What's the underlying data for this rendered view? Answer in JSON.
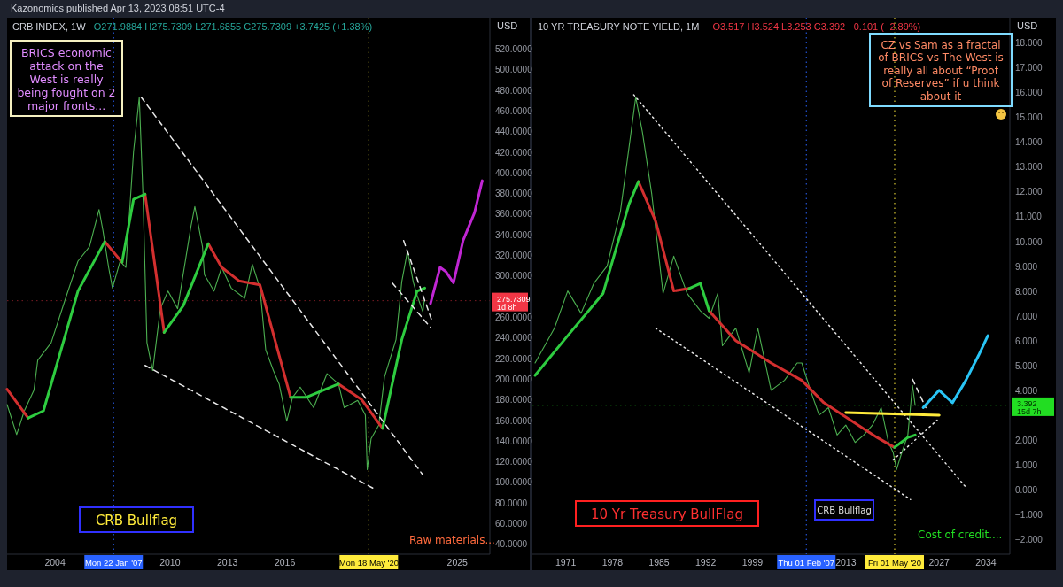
{
  "chart_data": [
    {
      "type": "line",
      "title": "CRB INDEX, 1W",
      "subtitle": "O271.9884 H275.7309 L271.6855 C275.7309 +3.7425 (+1.38%)",
      "ylabel": "USD",
      "xlim": [
        2001.5,
        2026.7
      ],
      "xticks": [
        2004,
        2010,
        2013,
        2016,
        2025
      ],
      "ylim": [
        30,
        550
      ],
      "yticks": [
        {
          "value": 40,
          "label": "40.0000"
        },
        {
          "value": 60,
          "label": "60.0000"
        },
        {
          "value": 80,
          "label": "80.0000"
        },
        {
          "value": 100,
          "label": "100.0000"
        },
        {
          "value": 120,
          "label": "120.0000"
        },
        {
          "value": 140,
          "label": "140.0000"
        },
        {
          "value": 160,
          "label": "160.0000"
        },
        {
          "value": 180,
          "label": "180.0000"
        },
        {
          "value": 200,
          "label": "200.0000"
        },
        {
          "value": 220,
          "label": "220.0000"
        },
        {
          "value": 240,
          "label": "240.0000"
        },
        {
          "value": 260,
          "label": "260.0000"
        },
        {
          "value": 300,
          "label": "300.0000"
        },
        {
          "value": 320,
          "label": "320.0000"
        },
        {
          "value": 340,
          "label": "340.0000"
        },
        {
          "value": 360,
          "label": "360.0000"
        },
        {
          "value": 380,
          "label": "380.0000"
        },
        {
          "value": 400,
          "label": "400.0000"
        },
        {
          "value": 420,
          "label": "420.0000"
        },
        {
          "value": 440,
          "label": "440.0000"
        },
        {
          "value": 460,
          "label": "460.0000"
        },
        {
          "value": 480,
          "label": "480.0000"
        },
        {
          "value": 500,
          "label": "500.0000"
        },
        {
          "value": 520,
          "label": "520.0000"
        }
      ],
      "series": [
        {
          "color": "#4caf50",
          "x": [
            2001.5,
            2002.0,
            2002.4,
            2002.9,
            2003.1,
            2003.8,
            2004.5,
            2005.2,
            2005.8,
            2006.3,
            2006.5,
            2006.8,
            2007.0,
            2007.4,
            2007.7,
            2008.1,
            2008.4,
            2008.6,
            2008.8,
            2009.1,
            2009.5,
            2009.9,
            2010.4,
            2011.1,
            2011.3,
            2011.7,
            2011.8,
            2012.3,
            2012.7,
            2013.2,
            2013.9,
            2014.3,
            2014.7,
            2015.0,
            2015.4,
            2015.7,
            2016.1,
            2016.4,
            2016.8,
            2017.5,
            2018.2,
            2018.8,
            2019.1,
            2019.8,
            2020.2,
            2020.3,
            2020.5,
            2020.9,
            2021.2,
            2021.8,
            2022.1,
            2022.4,
            2022.7,
            2022.9,
            2023.2,
            2023.28
          ],
          "values": [
            175,
            146,
            169,
            189,
            218,
            235,
            275,
            314,
            328,
            364,
            344,
            308,
            288,
            314,
            308,
            420,
            473,
            374,
            235,
            208,
            268,
            285,
            268,
            348,
            367,
            328,
            301,
            285,
            308,
            288,
            278,
            311,
            288,
            228,
            208,
            195,
            159,
            182,
            192,
            172,
            205,
            195,
            172,
            179,
            165,
            112,
            142,
            155,
            202,
            238,
            294,
            324,
            294,
            281,
            265,
            276
          ]
        },
        {
          "color": "#d32f2f",
          "line_style": "solid",
          "x": [
            2001.5,
            2002.6,
            2002.7,
            2006.6,
            2007.5,
            2007.6,
            2008.7,
            2009.7,
            2009.8,
            2012.0,
            2012.7,
            2013.6,
            2014.7,
            2016.3,
            2016.4,
            2018.8,
            2020.0,
            2021.1
          ],
          "values": [
            190,
            162,
            null,
            333,
            313,
            null,
            379,
            245,
            null,
            331,
            308,
            295,
            291,
            182,
            null,
            195,
            180,
            152
          ]
        },
        {
          "color": "#2ecc40",
          "line_style": "solid",
          "x": [
            2002.6,
            2003.4,
            2005.2,
            2006.6,
            2006.7,
            2007.5,
            2008.1,
            2008.7,
            2008.8,
            2009.7,
            2010.7,
            2012.0,
            2012.1,
            2016.3,
            2017.1,
            2018.8,
            2018.9,
            2021.1,
            2022.1,
            2022.9,
            2023.3
          ],
          "values": [
            162,
            169,
            285,
            333,
            null,
            313,
            374,
            379,
            null,
            245,
            271,
            331,
            null,
            182,
            182,
            195,
            null,
            152,
            238,
            285,
            288
          ]
        },
        {
          "color": "#e8e8e8",
          "line_style": "dashed",
          "x": [
            2008.5,
            2023.2
          ],
          "values": [
            473,
            107
          ]
        },
        {
          "color": "#e8e8e8",
          "line_style": "dashed",
          "x": [
            2008.7,
            2020.6
          ],
          "values": [
            213,
            94
          ]
        },
        {
          "color": "#e8e8e8",
          "line_style": "dashed",
          "x": [
            2022.2,
            2023.7
          ],
          "values": [
            334,
            255
          ]
        },
        {
          "color": "#e8e8e8",
          "line_style": "dashed",
          "x": [
            2021.6,
            2023.6
          ],
          "values": [
            293,
            250
          ]
        },
        {
          "color": "#c026d3",
          "line_style": "solid",
          "x": [
            2023.6,
            2024.1,
            2024.4,
            2024.8,
            2025.3,
            2025.9,
            2026.3
          ],
          "values": [
            273,
            308,
            304,
            293,
            334,
            361,
            392
          ]
        }
      ],
      "ref_lines": [
        {
          "axis": "x",
          "value": 2007.06,
          "label": "Mon 22 Jan '07",
          "color": "#2962ff",
          "line_style": "dotted"
        },
        {
          "axis": "x",
          "value": 2020.38,
          "label": "Mon 18 May '20",
          "color": "#ffeb3b",
          "line_style": "dotted"
        },
        {
          "axis": "y",
          "value": 275.7309,
          "label": "275.7309",
          "color": "#f23645",
          "line_style": "dotted"
        }
      ],
      "annotations": [
        "Kazonomics published Apr 13, 2023 08:51 UTC-4",
        "BRICS economic attack on the West is really being fought on 2 major fronts...",
        "CRB Bullflag",
        "Raw materials...",
        "1d 8h"
      ]
    },
    {
      "type": "line",
      "title": "10 YR TREASURY NOTE YIELD, 1M",
      "subtitle": "O3.517 H3.524 L3.253 C3.392 −0.101 (−2.89%)",
      "ylabel": "USD",
      "xlim": [
        1966,
        2037.6
      ],
      "xticks": [
        1971,
        1978,
        1985,
        1992,
        1999,
        2013,
        2027,
        2034
      ],
      "ylim": [
        -2.6,
        19
      ],
      "yticks": [
        {
          "value": -2,
          "label": "−2.000"
        },
        {
          "value": -1,
          "label": "−1.000"
        },
        {
          "value": 0,
          "label": "0.000"
        },
        {
          "value": 1,
          "label": "1.000"
        },
        {
          "value": 2,
          "label": "2.000"
        },
        {
          "value": 4,
          "label": "4.000"
        },
        {
          "value": 5,
          "label": "5.000"
        },
        {
          "value": 6,
          "label": "6.000"
        },
        {
          "value": 7,
          "label": "7.000"
        },
        {
          "value": 8,
          "label": "8.000"
        },
        {
          "value": 9,
          "label": "9.000"
        },
        {
          "value": 10,
          "label": "10.000"
        },
        {
          "value": 11,
          "label": "11.000"
        },
        {
          "value": 12,
          "label": "12.000"
        },
        {
          "value": 13,
          "label": "13.000"
        },
        {
          "value": 14,
          "label": "14.000"
        },
        {
          "value": 15,
          "label": "15.000"
        },
        {
          "value": 16,
          "label": "16.000"
        },
        {
          "value": 17,
          "label": "17.000"
        },
        {
          "value": 18,
          "label": "18.000"
        }
      ],
      "series": [
        {
          "color": "#4caf50",
          "x": [
            1966.4,
            1969.3,
            1971.3,
            1973.3,
            1975.2,
            1977.2,
            1979.2,
            1980.8,
            1981.5,
            1982.5,
            1983.9,
            1985.6,
            1987.2,
            1989.2,
            1991.2,
            1992.5,
            1993.8,
            1994.5,
            1996.5,
            1998.5,
            1999.8,
            2001.8,
            2003.8,
            2005.7,
            2006.4,
            2007.7,
            2009.0,
            2010.4,
            2011.7,
            2013.0,
            2014.4,
            2015.7,
            2017.0,
            2018.3,
            2019.4,
            2020.1,
            2020.6,
            2021.4,
            2022.3,
            2023.0,
            2023.4
          ],
          "values": [
            5.1,
            6.5,
            8.0,
            7.1,
            8.3,
            9.0,
            11.2,
            14.4,
            15.8,
            14.4,
            11.9,
            7.9,
            9.4,
            7.9,
            7.2,
            6.9,
            7.9,
            5.8,
            6.5,
            4.7,
            6.5,
            4.0,
            4.4,
            5.1,
            5.1,
            4.0,
            3.0,
            3.3,
            2.2,
            2.6,
            1.9,
            2.2,
            2.6,
            3.3,
            1.9,
            1.5,
            0.8,
            1.5,
            2.2,
            4.2,
            3.39
          ]
        },
        {
          "color": "#d32f2f",
          "line_style": "solid",
          "x": [
            1981.9,
            1984.5,
            1987.2,
            1989.5,
            1989.6,
            1992.5,
            1996.5,
            2001.8,
            2006.4,
            2009.7,
            2013.7,
            2017.7,
            2020.3
          ],
          "values": [
            12.4,
            10.8,
            8.0,
            8.1,
            null,
            7.2,
            6.0,
            5.1,
            4.4,
            3.5,
            2.8,
            2.1,
            1.7
          ]
        },
        {
          "color": "#2ecc40",
          "line_style": "solid",
          "x": [
            1966.4,
            1971.3,
            1976.6,
            1980.5,
            1981.9,
            1982.0,
            1989.5,
            1991.2,
            1992.5,
            1992.6,
            2020.3,
            2022.3,
            2023.4
          ],
          "values": [
            4.6,
            6.2,
            7.9,
            11.5,
            12.4,
            null,
            8.1,
            8.3,
            7.2,
            null,
            1.7,
            2.1,
            2.2
          ]
        },
        {
          "color": "#e8e8e8",
          "line_style": "dotted",
          "x": [
            1981.2,
            2031.0
          ],
          "values": [
            15.9,
            0.1
          ]
        },
        {
          "color": "#e8e8e8",
          "line_style": "dotted",
          "x": [
            1984.5,
            2022.7
          ],
          "values": [
            6.5,
            -0.4
          ]
        },
        {
          "color": "#e8e8e8",
          "line_style": "dotted",
          "x": [
            2020.1,
            2026.7
          ],
          "values": [
            1.2,
            2.8
          ]
        },
        {
          "color": "#e8e8e8",
          "line_style": "dashed",
          "x": [
            2023.0,
            2025.0
          ],
          "values": [
            4.45,
            3.3
          ]
        },
        {
          "color": "#ffeb3b",
          "line_style": "solid",
          "x": [
            2013.0,
            2027.0
          ],
          "values": [
            3.1,
            3.0
          ]
        },
        {
          "color": "#29c5f6",
          "line_style": "solid",
          "x": [
            2024.6,
            2027.0,
            2029.0,
            2031.0,
            2032.9,
            2034.3
          ],
          "values": [
            3.3,
            4.0,
            3.5,
            4.4,
            5.4,
            6.2
          ]
        }
      ],
      "ref_lines": [
        {
          "axis": "x",
          "value": 2007.08,
          "label": "Thu 01 Feb '07",
          "color": "#2962ff",
          "line_style": "dotted"
        },
        {
          "axis": "x",
          "value": 2020.33,
          "label": "Fri 01 May '20",
          "color": "#ffeb3b",
          "line_style": "dotted"
        },
        {
          "axis": "y",
          "value": 3.392,
          "label": "3.392",
          "color": "#22dd22",
          "line_style": "dotted"
        }
      ],
      "annotations": [
        "CZ vs Sam as a fractal of BRICS vs The West is really all about “Proof of Reserves” if u think about it",
        "10 Yr Treasury BullFlag",
        "CRB Bullflag",
        "Cost of credit....",
        "15d 7h"
      ]
    }
  ]
}
